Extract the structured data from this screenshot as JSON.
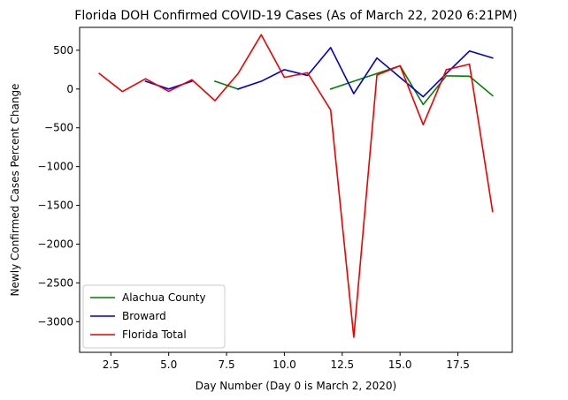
{
  "chart_data": {
    "type": "line",
    "title": "Florida DOH Confirmed COVID-19 Cases (As of March 22, 2020 6:21PM)",
    "xlabel": "Day Number (Day 0 is March 2, 2020)",
    "ylabel": "Newly Confirmed Cases Percent Change",
    "xlim": [
      1.15,
      19.85
    ],
    "ylim": [
      -3395,
      795
    ],
    "xticks": [
      2.5,
      5.0,
      7.5,
      10.0,
      12.5,
      15.0,
      17.5
    ],
    "xtick_labels": [
      "2.5",
      "5.0",
      "7.5",
      "10.0",
      "12.5",
      "15.0",
      "17.5"
    ],
    "yticks": [
      500,
      0,
      -500,
      -1000,
      -1500,
      -2000,
      -2500,
      -3000
    ],
    "ytick_labels": [
      "500",
      "0",
      "−500",
      "−1000",
      "−1500",
      "−2000",
      "−2500",
      "−3000"
    ],
    "grid": false,
    "legend_position": "lower-left",
    "series": [
      {
        "name": "Alachua County",
        "color": "#008000",
        "segments": [
          {
            "x": [
              7,
              8
            ],
            "y": [
              100,
              0
            ]
          },
          {
            "x": [
              12,
              13,
              14,
              15,
              16,
              17,
              18,
              19
            ],
            "y": [
              0,
              100,
              200,
              300,
              -200,
              170,
              165,
              -85
            ]
          }
        ]
      },
      {
        "name": "Broward",
        "color": "#0000cc",
        "segments": [
          {
            "x": [
              4,
              5,
              6
            ],
            "y": [
              100,
              0,
              100
            ]
          },
          {
            "x": [
              8,
              9,
              10,
              11,
              12,
              13,
              14,
              15,
              16,
              17,
              18,
              19
            ],
            "y": [
              0,
              100,
              250,
              175,
              535,
              -60,
              400,
              150,
              -100,
              200,
              490,
              400
            ]
          }
        ]
      },
      {
        "name": "Florida Total",
        "color": "#ee0000",
        "segments": [
          {
            "x": [
              2,
              3,
              4,
              5,
              6,
              7,
              8,
              9,
              10,
              11,
              12,
              13,
              14,
              15,
              16,
              17,
              18,
              19
            ],
            "y": [
              200,
              -33,
              133,
              -30,
              120,
              -150,
              200,
              700,
              150,
              210,
              -270,
              -3200,
              180,
              300,
              -460,
              250,
              320,
              -1580
            ]
          }
        ]
      }
    ]
  }
}
